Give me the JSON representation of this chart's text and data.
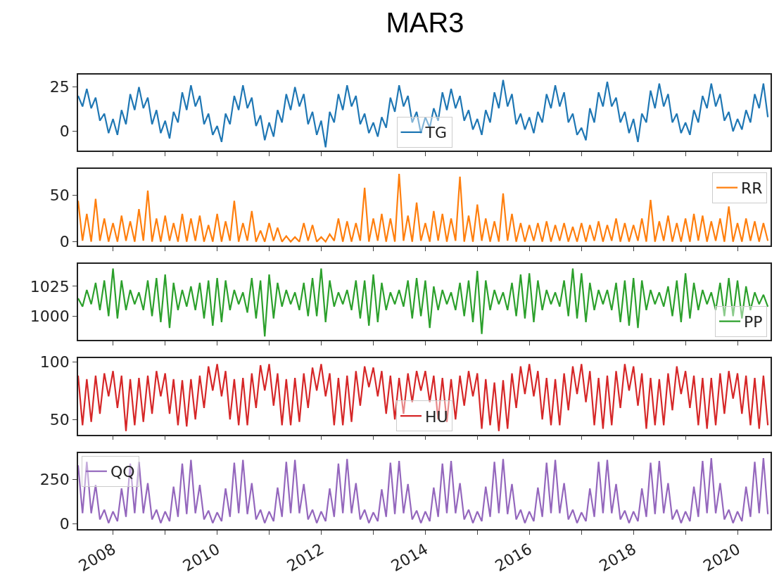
{
  "chart_data": [
    {
      "type": "line",
      "title": "MAR3",
      "xlim": [
        "2007-05-01",
        "2020-08-20"
      ],
      "ylim": [
        -11,
        32
      ],
      "yticks": [
        0,
        25
      ],
      "legend": "bottom",
      "tick_labels": "y",
      "xticks": [
        "2008",
        {
          "value": "2009",
          "label": null
        },
        "2010",
        {
          "value": "2011",
          "label": null
        },
        "2012",
        {
          "value": "2013",
          "label": null
        },
        "2014",
        {
          "value": "2015",
          "label": null
        },
        "2016",
        {
          "value": "2017",
          "label": null
        },
        "2018",
        {
          "value": "2019",
          "label": null
        },
        "2020"
      ],
      "x": [
        "2007-05",
        "2007-06",
        "2007-07",
        "2007-08",
        "2007-09",
        "2007-10",
        "2007-11",
        "2007-12",
        "2008-01",
        "2008-02",
        "2008-03",
        "2008-04",
        "2008-05",
        "2008-06",
        "2008-07",
        "2008-08",
        "2008-09",
        "2008-10",
        "2008-11",
        "2008-12",
        "2009-01",
        "2009-02",
        "2009-03",
        "2009-04",
        "2009-05",
        "2009-06",
        "2009-07",
        "2009-08",
        "2009-09",
        "2009-10",
        "2009-11",
        "2009-12",
        "2010-01",
        "2010-02",
        "2010-03",
        "2010-04",
        "2010-05",
        "2010-06",
        "2010-07",
        "2010-08",
        "2010-09",
        "2010-10",
        "2010-11",
        "2010-12",
        "2011-01",
        "2011-02",
        "2011-03",
        "2011-04",
        "2011-05",
        "2011-06",
        "2011-07",
        "2011-08",
        "2011-09",
        "2011-10",
        "2011-11",
        "2011-12",
        "2012-01",
        "2012-02",
        "2012-03",
        "2012-04",
        "2012-05",
        "2012-06",
        "2012-07",
        "2012-08",
        "2012-09",
        "2012-10",
        "2012-11",
        "2012-12",
        "2013-01",
        "2013-02",
        "2013-03",
        "2013-04",
        "2013-05",
        "2013-06",
        "2013-07",
        "2013-08",
        "2013-09",
        "2013-10",
        "2013-11",
        "2013-12",
        "2014-01",
        "2014-02",
        "2014-03",
        "2014-04",
        "2014-05",
        "2014-06",
        "2014-07",
        "2014-08",
        "2014-09",
        "2014-10",
        "2014-11",
        "2014-12",
        "2015-01",
        "2015-02",
        "2015-03",
        "2015-04",
        "2015-05",
        "2015-06",
        "2015-07",
        "2015-08",
        "2015-09",
        "2015-10",
        "2015-11",
        "2015-12",
        "2016-01",
        "2016-02",
        "2016-03",
        "2016-04",
        "2016-05",
        "2016-06",
        "2016-07",
        "2016-08",
        "2016-09",
        "2016-10",
        "2016-11",
        "2016-12",
        "2017-01",
        "2017-02",
        "2017-03",
        "2017-04",
        "2017-05",
        "2017-06",
        "2017-07",
        "2017-08",
        "2017-09",
        "2017-10",
        "2017-11",
        "2017-12",
        "2018-01",
        "2018-02",
        "2018-03",
        "2018-04",
        "2018-05",
        "2018-06",
        "2018-07",
        "2018-08",
        "2018-09",
        "2018-10",
        "2018-11",
        "2018-12",
        "2019-01",
        "2019-02",
        "2019-03",
        "2019-04",
        "2019-05",
        "2019-06",
        "2019-07",
        "2019-08",
        "2019-09",
        "2019-10",
        "2019-11",
        "2019-12",
        "2020-01",
        "2020-02",
        "2020-03",
        "2020-04",
        "2020-05",
        "2020-06",
        "2020-07",
        "2020-08"
      ],
      "series": [
        {
          "name": "TG",
          "color": "#1f77b4",
          "values": [
            20,
            14,
            24,
            13,
            19,
            6,
            10,
            -1,
            7,
            -2,
            12,
            4,
            21,
            12,
            25,
            13,
            19,
            4,
            12,
            -1,
            6,
            -4,
            11,
            5,
            22,
            12,
            26,
            14,
            20,
            4,
            10,
            -2,
            3,
            -6,
            10,
            4,
            20,
            12,
            26,
            13,
            19,
            3,
            9,
            -5,
            5,
            -3,
            12,
            5,
            21,
            12,
            25,
            14,
            21,
            4,
            11,
            -2,
            6,
            -9,
            11,
            5,
            21,
            12,
            26,
            14,
            20,
            4,
            10,
            -1,
            5,
            -3,
            8,
            2,
            19,
            11,
            26,
            14,
            20,
            5,
            11,
            -1,
            8,
            2,
            13,
            6,
            22,
            12,
            24,
            13,
            20,
            6,
            12,
            1,
            7,
            -2,
            12,
            5,
            22,
            13,
            29,
            14,
            21,
            4,
            10,
            1,
            8,
            -1,
            11,
            5,
            21,
            13,
            26,
            14,
            22,
            5,
            10,
            -2,
            2,
            -5,
            13,
            5,
            22,
            14,
            28,
            14,
            19,
            5,
            11,
            -1,
            7,
            -6,
            10,
            5,
            23,
            13,
            27,
            14,
            21,
            5,
            10,
            -1,
            5,
            -2,
            12,
            5,
            20,
            13,
            27,
            14,
            21,
            6,
            11,
            0,
            7,
            1,
            12,
            5,
            21,
            13,
            27,
            8
          ]
        }
      ]
    },
    {
      "type": "line",
      "xlim": [
        "2007-05-01",
        "2020-08-20"
      ],
      "ylim": [
        -4,
        78
      ],
      "yticks": [
        0,
        50
      ],
      "legend": "top right",
      "tick_labels": "y",
      "xticks": [
        "2008",
        {
          "value": "2009",
          "label": null
        },
        "2010",
        {
          "value": "2011",
          "label": null
        },
        "2012",
        {
          "value": "2013",
          "label": null
        },
        "2014",
        {
          "value": "2015",
          "label": null
        },
        "2016",
        {
          "value": "2017",
          "label": null
        },
        "2018",
        {
          "value": "2019",
          "label": null
        },
        "2020"
      ],
      "x": [
        "2007-05",
        "2007-06",
        "2007-07",
        "2007-08",
        "2007-09",
        "2007-10",
        "2007-11",
        "2007-12",
        "2008-01",
        "2008-02",
        "2008-03",
        "2008-04",
        "2008-05",
        "2008-06",
        "2008-07",
        "2008-08",
        "2008-09",
        "2008-10",
        "2008-11",
        "2008-12",
        "2009-01",
        "2009-02",
        "2009-03",
        "2009-04",
        "2009-05",
        "2009-06",
        "2009-07",
        "2009-08",
        "2009-09",
        "2009-10",
        "2009-11",
        "2009-12",
        "2010-01",
        "2010-02",
        "2010-03",
        "2010-04",
        "2010-05",
        "2010-06",
        "2010-07",
        "2010-08",
        "2010-09",
        "2010-10",
        "2010-11",
        "2010-12",
        "2011-01",
        "2011-02",
        "2011-03",
        "2011-04",
        "2011-05",
        "2011-06",
        "2011-07",
        "2011-08",
        "2011-09",
        "2011-10",
        "2011-11",
        "2011-12",
        "2012-01",
        "2012-02",
        "2012-03",
        "2012-04",
        "2012-05",
        "2012-06",
        "2012-07",
        "2012-08",
        "2012-09",
        "2012-10",
        "2012-11",
        "2012-12",
        "2013-01",
        "2013-02",
        "2013-03",
        "2013-04",
        "2013-05",
        "2013-06",
        "2013-07",
        "2013-08",
        "2013-09",
        "2013-10",
        "2013-11",
        "2013-12",
        "2014-01",
        "2014-02",
        "2014-03",
        "2014-04",
        "2014-05",
        "2014-06",
        "2014-07",
        "2014-08",
        "2014-09",
        "2014-10",
        "2014-11",
        "2014-12",
        "2015-01",
        "2015-02",
        "2015-03",
        "2015-04",
        "2015-05",
        "2015-06",
        "2015-07",
        "2015-08",
        "2015-09",
        "2015-10",
        "2015-11",
        "2015-12",
        "2016-01",
        "2016-02",
        "2016-03",
        "2016-04",
        "2016-05",
        "2016-06",
        "2016-07",
        "2016-08",
        "2016-09",
        "2016-10",
        "2016-11",
        "2016-12",
        "2017-01",
        "2017-02",
        "2017-03",
        "2017-04",
        "2017-05",
        "2017-06",
        "2017-07",
        "2017-08",
        "2017-09",
        "2017-10",
        "2017-11",
        "2017-12",
        "2018-01",
        "2018-02",
        "2018-03",
        "2018-04",
        "2018-05",
        "2018-06",
        "2018-07",
        "2018-08",
        "2018-09",
        "2018-10",
        "2018-11",
        "2018-12",
        "2019-01",
        "2019-02",
        "2019-03",
        "2019-04",
        "2019-05",
        "2019-06",
        "2019-07",
        "2019-08",
        "2019-09",
        "2019-10",
        "2019-11",
        "2019-12",
        "2020-01",
        "2020-02",
        "2020-03",
        "2020-04",
        "2020-05",
        "2020-06",
        "2020-07",
        "2020-08"
      ],
      "series": [
        {
          "name": "RR",
          "color": "#ff7f0e",
          "values": [
            44,
            1,
            30,
            0,
            46,
            1,
            25,
            0,
            20,
            0,
            28,
            1,
            22,
            0,
            35,
            1,
            55,
            0,
            25,
            0,
            28,
            1,
            20,
            0,
            30,
            0,
            25,
            1,
            28,
            0,
            18,
            0,
            30,
            0,
            22,
            1,
            44,
            0,
            20,
            1,
            33,
            0,
            12,
            0,
            20,
            1,
            15,
            0,
            6,
            0,
            5,
            0,
            20,
            1,
            18,
            0,
            5,
            0,
            8,
            1,
            25,
            0,
            22,
            0,
            20,
            1,
            58,
            0,
            25,
            1,
            30,
            0,
            25,
            0,
            73,
            1,
            28,
            0,
            42,
            1,
            20,
            0,
            33,
            1,
            30,
            0,
            25,
            1,
            70,
            0,
            28,
            0,
            40,
            1,
            25,
            0,
            22,
            0,
            52,
            1,
            30,
            0,
            20,
            0,
            18,
            1,
            20,
            0,
            22,
            0,
            18,
            1,
            20,
            0,
            16,
            0,
            20,
            0,
            18,
            1,
            22,
            0,
            18,
            1,
            25,
            0,
            20,
            0,
            18,
            1,
            25,
            0,
            45,
            0,
            22,
            1,
            28,
            0,
            20,
            0,
            25,
            0,
            30,
            1,
            28,
            0,
            22,
            1,
            25,
            0,
            38,
            0,
            20,
            0,
            25,
            1,
            22,
            0,
            20,
            1
          ]
        }
      ]
    },
    {
      "type": "line",
      "xlim": [
        "2007-05-01",
        "2020-08-20"
      ],
      "ylim": [
        980,
        1044
      ],
      "yticks": [
        1000,
        1025
      ],
      "legend": "bottom right",
      "tick_labels": "y",
      "xticks": [
        "2008",
        {
          "value": "2009",
          "label": null
        },
        "2010",
        {
          "value": "2011",
          "label": null
        },
        "2012",
        {
          "value": "2013",
          "label": null
        },
        "2014",
        {
          "value": "2015",
          "label": null
        },
        "2016",
        {
          "value": "2017",
          "label": null
        },
        "2018",
        {
          "value": "2019",
          "label": null
        },
        "2020"
      ],
      "x": [
        "2007-05",
        "2007-06",
        "2007-07",
        "2007-08",
        "2007-09",
        "2007-10",
        "2007-11",
        "2007-12",
        "2008-01",
        "2008-02",
        "2008-03",
        "2008-04",
        "2008-05",
        "2008-06",
        "2008-07",
        "2008-08",
        "2008-09",
        "2008-10",
        "2008-11",
        "2008-12",
        "2009-01",
        "2009-02",
        "2009-03",
        "2009-04",
        "2009-05",
        "2009-06",
        "2009-07",
        "2009-08",
        "2009-09",
        "2009-10",
        "2009-11",
        "2009-12",
        "2010-01",
        "2010-02",
        "2010-03",
        "2010-04",
        "2010-05",
        "2010-06",
        "2010-07",
        "2010-08",
        "2010-09",
        "2010-10",
        "2010-11",
        "2010-12",
        "2011-01",
        "2011-02",
        "2011-03",
        "2011-04",
        "2011-05",
        "2011-06",
        "2011-07",
        "2011-08",
        "2011-09",
        "2011-10",
        "2011-11",
        "2011-12",
        "2012-01",
        "2012-02",
        "2012-03",
        "2012-04",
        "2012-05",
        "2012-06",
        "2012-07",
        "2012-08",
        "2012-09",
        "2012-10",
        "2012-11",
        "2012-12",
        "2013-01",
        "2013-02",
        "2013-03",
        "2013-04",
        "2013-05",
        "2013-06",
        "2013-07",
        "2013-08",
        "2013-09",
        "2013-10",
        "2013-11",
        "2013-12",
        "2014-01",
        "2014-02",
        "2014-03",
        "2014-04",
        "2014-05",
        "2014-06",
        "2014-07",
        "2014-08",
        "2014-09",
        "2014-10",
        "2014-11",
        "2014-12",
        "2015-01",
        "2015-02",
        "2015-03",
        "2015-04",
        "2015-05",
        "2015-06",
        "2015-07",
        "2015-08",
        "2015-09",
        "2015-10",
        "2015-11",
        "2015-12",
        "2016-01",
        "2016-02",
        "2016-03",
        "2016-04",
        "2016-05",
        "2016-06",
        "2016-07",
        "2016-08",
        "2016-09",
        "2016-10",
        "2016-11",
        "2016-12",
        "2017-01",
        "2017-02",
        "2017-03",
        "2017-04",
        "2017-05",
        "2017-06",
        "2017-07",
        "2017-08",
        "2017-09",
        "2017-10",
        "2017-11",
        "2017-12",
        "2018-01",
        "2018-02",
        "2018-03",
        "2018-04",
        "2018-05",
        "2018-06",
        "2018-07",
        "2018-08",
        "2018-09",
        "2018-10",
        "2018-11",
        "2018-12",
        "2019-01",
        "2019-02",
        "2019-03",
        "2019-04",
        "2019-05",
        "2019-06",
        "2019-07",
        "2019-08",
        "2019-09",
        "2019-10",
        "2019-11",
        "2019-12",
        "2020-01",
        "2020-02",
        "2020-03",
        "2020-04",
        "2020-05",
        "2020-06",
        "2020-07",
        "2020-08"
      ],
      "series": [
        {
          "name": "PP",
          "color": "#2ca02c",
          "values": [
            1015,
            1008,
            1022,
            1010,
            1028,
            1005,
            1030,
            1000,
            1040,
            998,
            1030,
            1005,
            1022,
            1010,
            1020,
            1005,
            1030,
            1000,
            1032,
            995,
            1035,
            990,
            1028,
            1005,
            1022,
            1008,
            1025,
            1005,
            1028,
            998,
            1030,
            992,
            1032,
            995,
            1030,
            1005,
            1022,
            1010,
            1020,
            1003,
            1032,
            998,
            1030,
            983,
            1035,
            998,
            1028,
            1008,
            1022,
            1010,
            1020,
            1005,
            1028,
            1000,
            1032,
            1000,
            1040,
            995,
            1030,
            1008,
            1020,
            1010,
            1022,
            1005,
            1030,
            998,
            1030,
            992,
            1035,
            995,
            1028,
            1005,
            1020,
            1010,
            1022,
            1008,
            1030,
            998,
            1032,
            1000,
            1030,
            990,
            1025,
            1005,
            1022,
            1010,
            1020,
            1005,
            1028,
            1000,
            1030,
            995,
            1038,
            985,
            1030,
            1005,
            1022,
            1010,
            1020,
            1005,
            1028,
            1000,
            1035,
            998,
            1036,
            995,
            1030,
            1005,
            1022,
            1010,
            1020,
            1008,
            1030,
            1000,
            1040,
            998,
            1036,
            995,
            1028,
            1005,
            1022,
            1010,
            1022,
            1005,
            1028,
            995,
            1030,
            992,
            1032,
            990,
            1030,
            1005,
            1022,
            1010,
            1020,
            1008,
            1025,
            1000,
            1030,
            995,
            1036,
            998,
            1028,
            1005,
            1022,
            1010,
            1020,
            1005,
            1028,
            1000,
            1032,
            1000,
            1030,
            998,
            1025,
            1005,
            1020,
            1010,
            1018,
            1008
          ]
        }
      ]
    },
    {
      "type": "line",
      "xlim": [
        "2007-05-01",
        "2020-08-20"
      ],
      "ylim": [
        37,
        103
      ],
      "yticks": [
        50,
        100
      ],
      "legend": "bottom",
      "tick_labels": "y",
      "xticks": [
        "2008",
        {
          "value": "2009",
          "label": null
        },
        "2010",
        {
          "value": "2011",
          "label": null
        },
        "2012",
        {
          "value": "2013",
          "label": null
        },
        "2014",
        {
          "value": "2015",
          "label": null
        },
        "2016",
        {
          "value": "2017",
          "label": null
        },
        "2018",
        {
          "value": "2019",
          "label": null
        },
        "2020"
      ],
      "x": [
        "2007-05",
        "2007-06",
        "2007-07",
        "2007-08",
        "2007-09",
        "2007-10",
        "2007-11",
        "2007-12",
        "2008-01",
        "2008-02",
        "2008-03",
        "2008-04",
        "2008-05",
        "2008-06",
        "2008-07",
        "2008-08",
        "2008-09",
        "2008-10",
        "2008-11",
        "2008-12",
        "2009-01",
        "2009-02",
        "2009-03",
        "2009-04",
        "2009-05",
        "2009-06",
        "2009-07",
        "2009-08",
        "2009-09",
        "2009-10",
        "2009-11",
        "2009-12",
        "2010-01",
        "2010-02",
        "2010-03",
        "2010-04",
        "2010-05",
        "2010-06",
        "2010-07",
        "2010-08",
        "2010-09",
        "2010-10",
        "2010-11",
        "2010-12",
        "2011-01",
        "2011-02",
        "2011-03",
        "2011-04",
        "2011-05",
        "2011-06",
        "2011-07",
        "2011-08",
        "2011-09",
        "2011-10",
        "2011-11",
        "2011-12",
        "2012-01",
        "2012-02",
        "2012-03",
        "2012-04",
        "2012-05",
        "2012-06",
        "2012-07",
        "2012-08",
        "2012-09",
        "2012-10",
        "2012-11",
        "2012-12",
        "2013-01",
        "2013-02",
        "2013-03",
        "2013-04",
        "2013-05",
        "2013-06",
        "2013-07",
        "2013-08",
        "2013-09",
        "2013-10",
        "2013-11",
        "2013-12",
        "2014-01",
        "2014-02",
        "2014-03",
        "2014-04",
        "2014-05",
        "2014-06",
        "2014-07",
        "2014-08",
        "2014-09",
        "2014-10",
        "2014-11",
        "2014-12",
        "2015-01",
        "2015-02",
        "2015-03",
        "2015-04",
        "2015-05",
        "2015-06",
        "2015-07",
        "2015-08",
        "2015-09",
        "2015-10",
        "2015-11",
        "2015-12",
        "2016-01",
        "2016-02",
        "2016-03",
        "2016-04",
        "2016-05",
        "2016-06",
        "2016-07",
        "2016-08",
        "2016-09",
        "2016-10",
        "2016-11",
        "2016-12",
        "2017-01",
        "2017-02",
        "2017-03",
        "2017-04",
        "2017-05",
        "2017-06",
        "2017-07",
        "2017-08",
        "2017-09",
        "2017-10",
        "2017-11",
        "2017-12",
        "2018-01",
        "2018-02",
        "2018-03",
        "2018-04",
        "2018-05",
        "2018-06",
        "2018-07",
        "2018-08",
        "2018-09",
        "2018-10",
        "2018-11",
        "2018-12",
        "2019-01",
        "2019-02",
        "2019-03",
        "2019-04",
        "2019-05",
        "2019-06",
        "2019-07",
        "2019-08",
        "2019-09",
        "2019-10",
        "2019-11",
        "2019-12",
        "2020-01",
        "2020-02",
        "2020-03",
        "2020-04",
        "2020-05",
        "2020-06",
        "2020-07",
        "2020-08"
      ],
      "series": [
        {
          "name": "HU",
          "color": "#d62728",
          "values": [
            88,
            45,
            85,
            48,
            88,
            55,
            90,
            70,
            92,
            60,
            88,
            40,
            85,
            45,
            86,
            48,
            88,
            55,
            92,
            70,
            90,
            55,
            85,
            45,
            84,
            44,
            85,
            50,
            88,
            60,
            96,
            75,
            98,
            70,
            92,
            50,
            85,
            45,
            86,
            45,
            90,
            60,
            97,
            75,
            98,
            62,
            90,
            45,
            85,
            45,
            86,
            48,
            90,
            60,
            95,
            75,
            98,
            70,
            90,
            45,
            86,
            45,
            88,
            48,
            92,
            62,
            96,
            78,
            95,
            70,
            92,
            55,
            88,
            50,
            86,
            55,
            90,
            65,
            92,
            75,
            92,
            65,
            88,
            50,
            86,
            48,
            85,
            50,
            88,
            62,
            92,
            70,
            90,
            42,
            85,
            45,
            82,
            40,
            84,
            42,
            90,
            60,
            96,
            72,
            98,
            70,
            92,
            50,
            86,
            45,
            85,
            45,
            90,
            58,
            96,
            72,
            98,
            65,
            92,
            45,
            86,
            42,
            88,
            45,
            92,
            60,
            98,
            75,
            96,
            62,
            90,
            42,
            86,
            45,
            85,
            45,
            90,
            58,
            96,
            72,
            92,
            60,
            88,
            45,
            86,
            42,
            86,
            45,
            90,
            55,
            92,
            68,
            90,
            55,
            88,
            45,
            86,
            42,
            88,
            45
          ]
        }
      ]
    },
    {
      "type": "line",
      "xlim": [
        "2007-05-01",
        "2020-08-20"
      ],
      "ylim": [
        -29,
        400
      ],
      "yticks": [
        0,
        250
      ],
      "legend": "top left",
      "xticks": [
        "2008",
        {
          "value": "2009",
          "label": null
        },
        "2010",
        {
          "value": "2011",
          "label": null
        },
        "2012",
        {
          "value": "2013",
          "label": null
        },
        "2014",
        {
          "value": "2015",
          "label": null
        },
        "2016",
        {
          "value": "2017",
          "label": null
        },
        "2018",
        {
          "value": "2019",
          "label": null
        },
        "2020"
      ],
      "x": [
        "2007-05",
        "2007-06",
        "2007-07",
        "2007-08",
        "2007-09",
        "2007-10",
        "2007-11",
        "2007-12",
        "2008-01",
        "2008-02",
        "2008-03",
        "2008-04",
        "2008-05",
        "2008-06",
        "2008-07",
        "2008-08",
        "2008-09",
        "2008-10",
        "2008-11",
        "2008-12",
        "2009-01",
        "2009-02",
        "2009-03",
        "2009-04",
        "2009-05",
        "2009-06",
        "2009-07",
        "2009-08",
        "2009-09",
        "2009-10",
        "2009-11",
        "2009-12",
        "2010-01",
        "2010-02",
        "2010-03",
        "2010-04",
        "2010-05",
        "2010-06",
        "2010-07",
        "2010-08",
        "2010-09",
        "2010-10",
        "2010-11",
        "2010-12",
        "2011-01",
        "2011-02",
        "2011-03",
        "2011-04",
        "2011-05",
        "2011-06",
        "2011-07",
        "2011-08",
        "2011-09",
        "2011-10",
        "2011-11",
        "2011-12",
        "2012-01",
        "2012-02",
        "2012-03",
        "2012-04",
        "2012-05",
        "2012-06",
        "2012-07",
        "2012-08",
        "2012-09",
        "2012-10",
        "2012-11",
        "2012-12",
        "2013-01",
        "2013-02",
        "2013-03",
        "2013-04",
        "2013-05",
        "2013-06",
        "2013-07",
        "2013-08",
        "2013-09",
        "2013-10",
        "2013-11",
        "2013-12",
        "2014-01",
        "2014-02",
        "2014-03",
        "2014-04",
        "2014-05",
        "2014-06",
        "2014-07",
        "2014-08",
        "2014-09",
        "2014-10",
        "2014-11",
        "2014-12",
        "2015-01",
        "2015-02",
        "2015-03",
        "2015-04",
        "2015-05",
        "2015-06",
        "2015-07",
        "2015-08",
        "2015-09",
        "2015-10",
        "2015-11",
        "2015-12",
        "2016-01",
        "2016-02",
        "2016-03",
        "2016-04",
        "2016-05",
        "2016-06",
        "2016-07",
        "2016-08",
        "2016-09",
        "2016-10",
        "2016-11",
        "2016-12",
        "2017-01",
        "2017-02",
        "2017-03",
        "2017-04",
        "2017-05",
        "2017-06",
        "2017-07",
        "2017-08",
        "2017-09",
        "2017-10",
        "2017-11",
        "2017-12",
        "2018-01",
        "2018-02",
        "2018-03",
        "2018-04",
        "2018-05",
        "2018-06",
        "2018-07",
        "2018-08",
        "2018-09",
        "2018-10",
        "2018-11",
        "2018-12",
        "2019-01",
        "2019-02",
        "2019-03",
        "2019-04",
        "2019-05",
        "2019-06",
        "2019-07",
        "2019-08",
        "2019-09",
        "2019-10",
        "2019-11",
        "2019-12",
        "2020-01",
        "2020-02",
        "2020-03",
        "2020-04",
        "2020-05",
        "2020-06",
        "2020-07",
        "2020-08"
      ],
      "series": [
        {
          "name": "QQ",
          "color": "#9467bd",
          "values": [
            330,
            60,
            350,
            60,
            220,
            25,
            80,
            5,
            70,
            15,
            200,
            40,
            340,
            60,
            350,
            60,
            230,
            25,
            80,
            5,
            70,
            15,
            210,
            40,
            340,
            55,
            360,
            60,
            220,
            25,
            75,
            5,
            65,
            15,
            200,
            40,
            345,
            60,
            360,
            55,
            230,
            25,
            80,
            5,
            70,
            15,
            205,
            40,
            350,
            60,
            360,
            60,
            225,
            25,
            80,
            5,
            70,
            15,
            200,
            40,
            340,
            60,
            365,
            60,
            230,
            25,
            80,
            5,
            65,
            15,
            195,
            40,
            345,
            55,
            355,
            60,
            225,
            25,
            75,
            5,
            70,
            15,
            205,
            40,
            340,
            60,
            355,
            60,
            230,
            25,
            80,
            5,
            70,
            15,
            210,
            40,
            350,
            60,
            365,
            55,
            225,
            25,
            80,
            5,
            70,
            15,
            205,
            40,
            345,
            60,
            360,
            60,
            230,
            25,
            80,
            5,
            65,
            15,
            200,
            40,
            350,
            60,
            360,
            60,
            225,
            25,
            75,
            5,
            70,
            15,
            200,
            40,
            345,
            55,
            355,
            60,
            230,
            25,
            80,
            5,
            70,
            15,
            210,
            40,
            355,
            60,
            370,
            60,
            230,
            25,
            80,
            5,
            70,
            15,
            210,
            40,
            350,
            60,
            370,
            55
          ]
        }
      ]
    }
  ]
}
